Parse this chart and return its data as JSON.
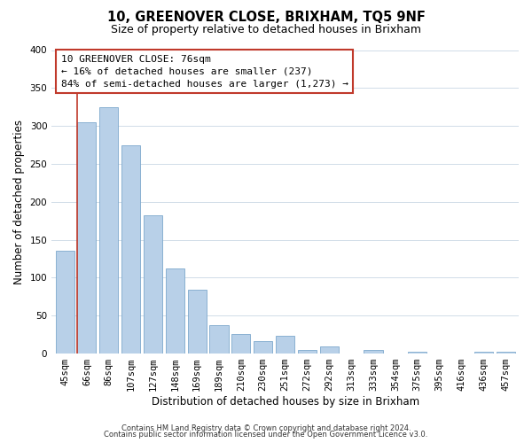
{
  "title": "10, GREENOVER CLOSE, BRIXHAM, TQ5 9NF",
  "subtitle": "Size of property relative to detached houses in Brixham",
  "xlabel": "Distribution of detached houses by size in Brixham",
  "ylabel": "Number of detached properties",
  "bar_labels": [
    "45sqm",
    "66sqm",
    "86sqm",
    "107sqm",
    "127sqm",
    "148sqm",
    "169sqm",
    "189sqm",
    "210sqm",
    "230sqm",
    "251sqm",
    "272sqm",
    "292sqm",
    "313sqm",
    "333sqm",
    "354sqm",
    "375sqm",
    "395sqm",
    "416sqm",
    "436sqm",
    "457sqm"
  ],
  "bar_values": [
    135,
    305,
    325,
    275,
    182,
    112,
    84,
    37,
    26,
    17,
    24,
    5,
    10,
    0,
    5,
    0,
    2,
    0,
    0,
    2,
    2
  ],
  "bar_color": "#b8d0e8",
  "bar_edge_color": "#7da8cc",
  "highlight_line_color": "#c0392b",
  "highlight_index": 1,
  "annotation_text_line1": "10 GREENOVER CLOSE: 76sqm",
  "annotation_text_line2": "← 16% of detached houses are smaller (237)",
  "annotation_text_line3": "84% of semi-detached houses are larger (1,273) →",
  "annotation_box_color": "#c0392b",
  "ylim": [
    0,
    400
  ],
  "yticks": [
    0,
    50,
    100,
    150,
    200,
    250,
    300,
    350,
    400
  ],
  "footer_line1": "Contains HM Land Registry data © Crown copyright and database right 2024.",
  "footer_line2": "Contains public sector information licensed under the Open Government Licence v3.0.",
  "bg_color": "#ffffff",
  "grid_color": "#d0dce8",
  "title_fontsize": 10.5,
  "subtitle_fontsize": 9,
  "ylabel_fontsize": 8.5,
  "xlabel_fontsize": 8.5,
  "tick_fontsize": 7.5,
  "annotation_fontsize": 8,
  "footer_fontsize": 6
}
